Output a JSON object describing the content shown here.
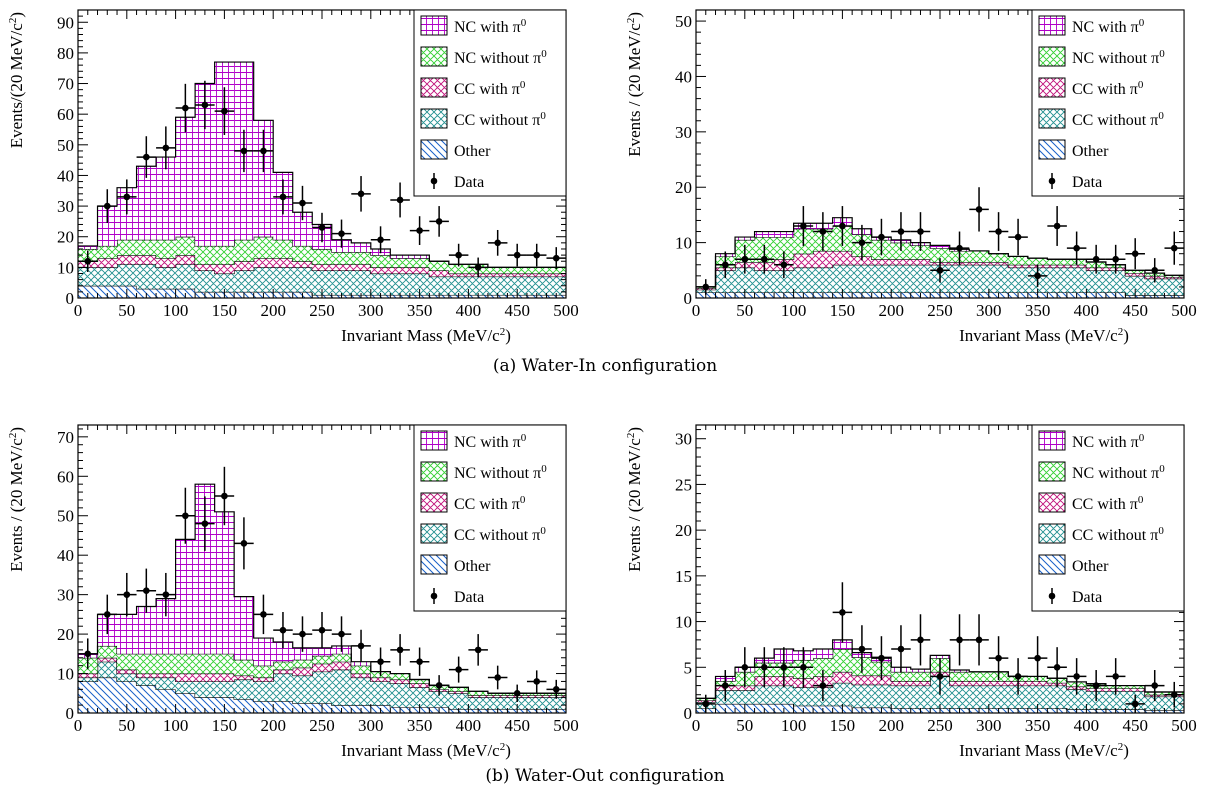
{
  "figure": {
    "caption_top": "(a)  Water-In configuration",
    "caption_bottom": "(b)  Water-Out configuration"
  },
  "legend_colors": {
    "NC with π0": "#b000c8",
    "NC without π0": "#30d030",
    "CC with π0": "#c0107a",
    "CC without π0": "#208f8f",
    "Other": "#1860c8"
  },
  "chart_data": [
    {
      "type": "bar",
      "stacked": true,
      "panel": "top-left",
      "xlabel": "Invariant Mass (MeV/c²)",
      "ylabel": "Events/(20 MeV/c²)",
      "xlim": [
        0,
        500
      ],
      "ylim": [
        0,
        94
      ],
      "x_ticks": [
        0,
        50,
        100,
        150,
        200,
        250,
        300,
        350,
        400,
        450,
        500
      ],
      "y_ticks": [
        0,
        10,
        20,
        30,
        40,
        50,
        60,
        70,
        80,
        90
      ],
      "bin_width": 20,
      "legend_position": "top-right",
      "series": [
        {
          "name": "Other",
          "values": [
            4,
            4,
            4,
            3,
            3,
            3,
            2,
            2,
            2,
            2,
            2,
            2,
            1,
            1,
            1,
            1,
            1,
            1,
            1,
            1,
            1,
            1,
            1,
            1,
            1
          ]
        },
        {
          "name": "CC without π0",
          "values": [
            6,
            6,
            7,
            8,
            7,
            8,
            7,
            6,
            7,
            8,
            8,
            8,
            8,
            8,
            8,
            7,
            7,
            7,
            6,
            6,
            6,
            6,
            6,
            6,
            6
          ]
        },
        {
          "name": "CC with π0",
          "values": [
            2,
            3,
            3,
            3,
            3,
            3,
            2,
            3,
            3,
            3,
            3,
            2,
            2,
            2,
            2,
            2,
            2,
            2,
            2,
            1,
            1,
            1,
            1,
            1,
            1
          ]
        },
        {
          "name": "NC without π0",
          "values": [
            4,
            4,
            5,
            5,
            6,
            6,
            6,
            6,
            7,
            7,
            6,
            5,
            5,
            4,
            4,
            4,
            3,
            3,
            3,
            3,
            3,
            2,
            2,
            2,
            2
          ]
        },
        {
          "name": "NC with π0",
          "values": [
            1,
            13,
            17,
            24,
            27,
            39,
            53,
            60,
            58,
            38,
            22,
            11,
            8,
            4,
            3,
            2,
            1,
            1,
            0,
            0,
            0,
            0,
            0,
            0,
            0
          ]
        }
      ],
      "data_points": {
        "name": "Data",
        "x": [
          10,
          30,
          50,
          70,
          90,
          110,
          130,
          150,
          170,
          190,
          210,
          230,
          250,
          270,
          290,
          310,
          330,
          350,
          370,
          390,
          410,
          430,
          450,
          470,
          490
        ],
        "y": [
          12,
          30,
          33,
          46,
          49,
          62,
          63,
          61,
          48,
          48,
          33,
          31,
          23,
          21,
          34,
          19,
          32,
          22,
          25,
          14,
          10,
          18,
          14,
          14,
          13
        ],
        "err": [
          3.5,
          5.5,
          5.7,
          6.8,
          7,
          7.9,
          7.9,
          7.8,
          6.9,
          6.9,
          5.7,
          5.6,
          4.8,
          4.6,
          5.8,
          4.4,
          5.7,
          4.7,
          5,
          3.7,
          3.2,
          4.2,
          3.7,
          3.7,
          3.6
        ]
      }
    },
    {
      "type": "bar",
      "stacked": true,
      "panel": "top-right",
      "xlabel": "Invariant Mass (MeV/c²)",
      "ylabel": "Events / (20 MeV/c²)",
      "xlim": [
        0,
        500
      ],
      "ylim": [
        0,
        52
      ],
      "x_ticks": [
        0,
        50,
        100,
        150,
        200,
        250,
        300,
        350,
        400,
        450,
        500
      ],
      "y_ticks": [
        0,
        10,
        20,
        30,
        40,
        50
      ],
      "bin_width": 20,
      "legend_position": "top-right",
      "series": [
        {
          "name": "Other",
          "values": [
            1,
            1,
            1,
            1,
            1,
            1,
            1,
            1,
            1,
            1,
            1,
            1,
            1,
            1,
            1,
            1,
            1,
            1,
            1,
            1,
            1,
            1,
            0.5,
            0.5,
            0.5
          ]
        },
        {
          "name": "CC without π0",
          "values": [
            0.5,
            4,
            4.5,
            4,
            4,
            4.5,
            4.5,
            5,
            5,
            5,
            5,
            5,
            5,
            5,
            5,
            5,
            4.5,
            4.5,
            4.5,
            4.5,
            4,
            4,
            3.5,
            3,
            3
          ]
        },
        {
          "name": "CC with π0",
          "values": [
            0.3,
            0.5,
            1,
            1.5,
            2,
            2.5,
            3,
            2.5,
            1.5,
            1,
            1,
            1,
            0.5,
            0.5,
            0.5,
            0.5,
            0.5,
            0.5,
            0.5,
            0.5,
            0.5,
            0.5,
            0.5,
            0.5,
            0.3
          ]
        },
        {
          "name": "NC without π0",
          "values": [
            0.2,
            2,
            4,
            4.5,
            4,
            4.5,
            4,
            4.5,
            4,
            3.5,
            3,
            2.5,
            2.5,
            2,
            2,
            1.5,
            1.5,
            1.2,
            1,
            1,
            1,
            0.5,
            0.5,
            0.5,
            0.3
          ]
        },
        {
          "name": "NC with π0",
          "values": [
            0,
            0.5,
            0.5,
            1,
            1,
            1,
            1,
            1.5,
            1,
            0.5,
            0.5,
            0.5,
            0.5,
            0.3,
            0,
            0,
            0,
            0,
            0,
            0,
            0,
            0,
            0,
            0,
            0
          ]
        }
      ],
      "data_points": {
        "name": "Data",
        "x": [
          10,
          30,
          50,
          70,
          90,
          110,
          130,
          150,
          170,
          190,
          210,
          230,
          250,
          270,
          290,
          310,
          330,
          350,
          370,
          390,
          410,
          430,
          450,
          470,
          490
        ],
        "y": [
          2,
          6,
          7,
          7,
          6,
          13,
          12,
          13,
          10,
          11,
          12,
          12,
          5,
          9,
          16,
          12,
          11,
          4,
          13,
          9,
          7,
          7,
          8,
          5,
          9
        ],
        "err": [
          1.4,
          2.4,
          2.6,
          2.6,
          2.4,
          3.6,
          3.5,
          3.6,
          3.2,
          3.3,
          3.5,
          3.5,
          2.2,
          3,
          4,
          3.5,
          3.3,
          2,
          3.6,
          3,
          2.6,
          2.6,
          2.8,
          2.2,
          3
        ]
      }
    },
    {
      "type": "bar",
      "stacked": true,
      "panel": "bottom-left",
      "xlabel": "Invariant Mass (MeV/c²)",
      "ylabel": "Events / (20 MeV/c²)",
      "xlim": [
        0,
        500
      ],
      "ylim": [
        0,
        73
      ],
      "x_ticks": [
        0,
        50,
        100,
        150,
        200,
        250,
        300,
        350,
        400,
        450,
        500
      ],
      "y_ticks": [
        0,
        10,
        20,
        30,
        40,
        50,
        60,
        70
      ],
      "bin_width": 20,
      "legend_position": "top-right",
      "series": [
        {
          "name": "Other",
          "values": [
            8,
            9,
            8,
            7,
            6,
            5,
            4,
            4,
            3.5,
            3,
            3,
            2.5,
            2.5,
            2,
            2,
            2,
            1.5,
            1.5,
            1.5,
            1,
            1,
            1,
            1,
            1,
            1
          ]
        },
        {
          "name": "CC without π0",
          "values": [
            1,
            4,
            2,
            2,
            3,
            3,
            4,
            4,
            5,
            5,
            7,
            7,
            8,
            9,
            7,
            6,
            6,
            5,
            4,
            4,
            3,
            3,
            3,
            3,
            3
          ]
        },
        {
          "name": "CC with π0",
          "values": [
            1,
            1,
            1,
            1,
            1,
            2,
            2,
            2,
            1,
            1,
            1,
            2,
            2,
            2,
            1,
            1,
            1,
            1,
            0.5,
            0.5,
            0.5,
            0.5,
            0.5,
            0.5,
            0.5
          ]
        },
        {
          "name": "NC without π0",
          "values": [
            4,
            3,
            4,
            5,
            5,
            5,
            5,
            5,
            4,
            3,
            2,
            2,
            2,
            2,
            2,
            1.5,
            1.5,
            1,
            1,
            1,
            1,
            0.5,
            0.5,
            0.5,
            0.5
          ]
        },
        {
          "name": "NC with π0",
          "values": [
            1,
            8,
            10,
            12,
            14,
            29,
            43,
            36,
            16,
            7,
            5,
            3,
            2,
            2,
            1,
            0,
            0,
            0,
            0,
            0,
            0,
            0,
            0,
            0,
            0
          ]
        }
      ],
      "data_points": {
        "name": "Data",
        "x": [
          10,
          30,
          50,
          70,
          90,
          110,
          130,
          150,
          170,
          190,
          210,
          230,
          250,
          270,
          290,
          310,
          330,
          350,
          370,
          390,
          410,
          430,
          450,
          470,
          490
        ],
        "y": [
          15,
          25,
          30,
          31,
          30,
          50,
          48,
          55,
          43,
          25,
          21,
          20,
          21,
          20,
          17,
          13,
          16,
          13,
          7,
          11,
          16,
          9,
          5,
          8,
          6
        ],
        "err": [
          3.9,
          5,
          5.5,
          5.6,
          5.5,
          7.1,
          6.9,
          7.4,
          6.6,
          5,
          4.6,
          4.5,
          4.6,
          4.5,
          4.1,
          3.6,
          4,
          3.6,
          2.6,
          3.3,
          4,
          3,
          2.2,
          2.8,
          2.4
        ]
      }
    },
    {
      "type": "bar",
      "stacked": true,
      "panel": "bottom-right",
      "xlabel": "Invariant Mass (MeV/c²)",
      "ylabel": "Events / (20 MeV/c²)",
      "xlim": [
        0,
        500
      ],
      "ylim": [
        0,
        31.5
      ],
      "x_ticks": [
        0,
        50,
        100,
        150,
        200,
        250,
        300,
        350,
        400,
        450,
        500
      ],
      "y_ticks": [
        0,
        5,
        10,
        15,
        20,
        25,
        30
      ],
      "bin_width": 20,
      "legend_position": "top-right",
      "series": [
        {
          "name": "Other",
          "values": [
            0.5,
            1,
            1,
            1,
            1,
            0.8,
            0.8,
            0.8,
            0.6,
            0.6,
            0.5,
            0.5,
            0.5,
            0.5,
            0.5,
            0.5,
            0.5,
            0.5,
            0.5,
            0.4,
            0.4,
            0.4,
            0.4,
            0.3,
            0.3
          ]
        },
        {
          "name": "CC without π0",
          "values": [
            0.7,
            1.5,
            1.5,
            2,
            2,
            2,
            2,
            2.5,
            2.5,
            2.5,
            2.5,
            2.5,
            3.5,
            2.5,
            2.5,
            2.5,
            2.5,
            2.5,
            2.5,
            2.2,
            2,
            2,
            2,
            1.5,
            1.5
          ]
        },
        {
          "name": "CC with π0",
          "values": [
            0.2,
            0.5,
            0.5,
            1,
            1,
            1,
            1.2,
            1.2,
            1,
            1,
            0.5,
            0.5,
            0.5,
            0.5,
            0.5,
            0.5,
            0.5,
            0.5,
            0.3,
            0.3,
            0.3,
            0.3,
            0.3,
            0.2,
            0.2
          ]
        },
        {
          "name": "NC without π0",
          "values": [
            0.2,
            0.5,
            1.5,
            1.5,
            1.5,
            2,
            2,
            2.5,
            2,
            1.5,
            1,
            1,
            1.5,
            1,
            1,
            1,
            0.5,
            0.5,
            0.5,
            0.5,
            0.5,
            0.3,
            0.3,
            0.3,
            0.3
          ]
        },
        {
          "name": "NC with π0",
          "values": [
            0,
            0.5,
            0.5,
            0.5,
            1.5,
            1,
            1,
            1,
            0.5,
            0.5,
            0.5,
            0.3,
            0.3,
            0.2,
            0,
            0,
            0,
            0,
            0,
            0,
            0,
            0,
            0,
            0,
            0
          ]
        }
      ],
      "data_points": {
        "name": "Data",
        "x": [
          10,
          30,
          50,
          70,
          90,
          110,
          130,
          150,
          170,
          190,
          210,
          230,
          250,
          270,
          290,
          310,
          330,
          350,
          370,
          390,
          410,
          430,
          450,
          470,
          490
        ],
        "y": [
          1,
          3,
          5,
          5,
          5,
          5,
          3,
          11,
          7,
          6,
          7,
          8,
          4,
          8,
          8,
          6,
          4,
          6,
          5,
          4,
          3,
          4,
          1,
          3,
          2
        ],
        "err": [
          1,
          1.7,
          2.2,
          2.2,
          2.2,
          2.2,
          1.7,
          3.3,
          2.6,
          2.4,
          2.6,
          2.8,
          2,
          2.8,
          2.8,
          2.4,
          2,
          2.4,
          2.2,
          2,
          1.7,
          2,
          1,
          1.7,
          1.4
        ]
      }
    }
  ]
}
